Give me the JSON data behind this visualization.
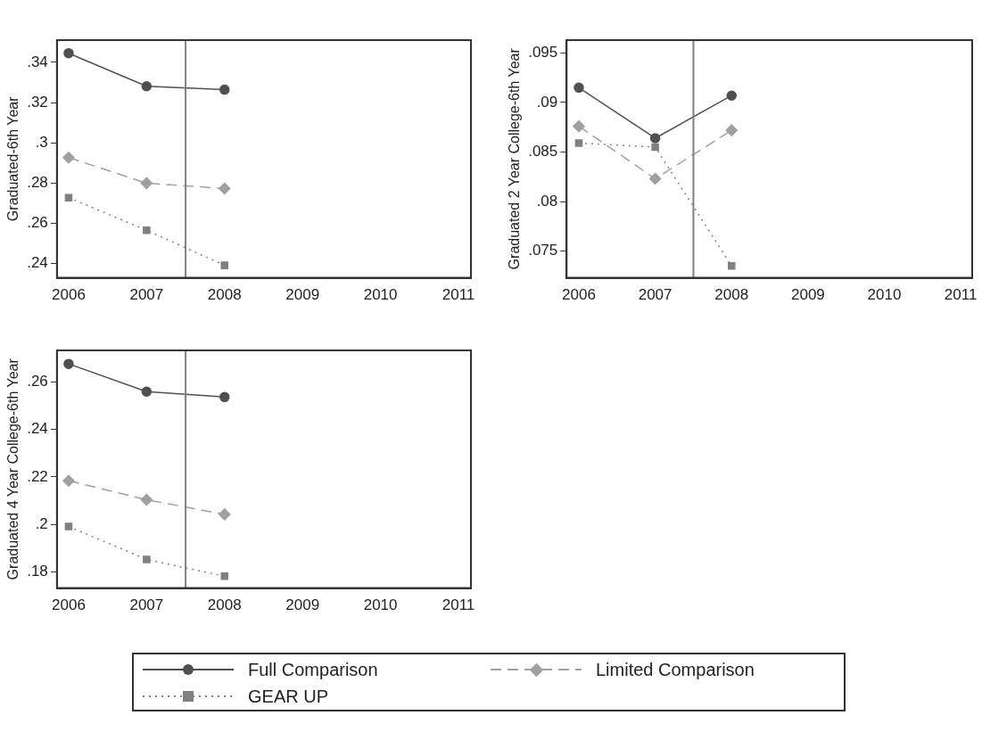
{
  "chart_data": [
    {
      "type": "line",
      "ylabel": "Graduated-6th Year",
      "x": [
        2006,
        2007,
        2008
      ],
      "xlim": [
        2005.85,
        2011.16
      ],
      "xticks": [
        2006,
        2007,
        2008,
        2009,
        2010,
        2011
      ],
      "ylim": [
        0.233,
        0.351
      ],
      "yticks": [
        {
          "value": 0.24,
          "label": ".24"
        },
        {
          "value": 0.26,
          "label": ".26"
        },
        {
          "value": 0.28,
          "label": ".28"
        },
        {
          "value": 0.3,
          "label": ".3"
        },
        {
          "value": 0.32,
          "label": ".32"
        },
        {
          "value": 0.34,
          "label": ".34"
        }
      ],
      "grid": false,
      "legend": "bottom",
      "ref_lines": [
        {
          "axis": "x",
          "value": 2007.5,
          "color": "#808080"
        }
      ],
      "series": [
        {
          "name": "Full Comparison",
          "color": "#505050",
          "marker": "circle",
          "line_style": "solid",
          "values": [
            0.3445,
            0.3281,
            0.3264
          ]
        },
        {
          "name": "Limited Comparison",
          "color": "#a0a0a0",
          "marker": "diamond",
          "line_style": "dashed",
          "values": [
            0.2927,
            0.28,
            0.2773
          ]
        },
        {
          "name": "GEAR UP",
          "color": "#808080",
          "marker": "square",
          "line_style": "dotted",
          "values": [
            0.2728,
            0.2566,
            0.2392
          ]
        }
      ]
    },
    {
      "type": "line",
      "ylabel": "Graduated 2 Year College-6th Year",
      "x": [
        2006,
        2007,
        2008
      ],
      "xlim": [
        2005.84,
        2011.15
      ],
      "xticks": [
        2006,
        2007,
        2008,
        2009,
        2010,
        2011
      ],
      "ylim": [
        0.0723,
        0.0963
      ],
      "yticks": [
        {
          "value": 0.075,
          "label": ".075"
        },
        {
          "value": 0.08,
          "label": ".08"
        },
        {
          "value": 0.085,
          "label": ".085"
        },
        {
          "value": 0.09,
          "label": ".09"
        },
        {
          "value": 0.095,
          "label": ".095"
        }
      ],
      "grid": false,
      "ref_lines": [
        {
          "axis": "x",
          "value": 2007.5,
          "color": "#808080"
        }
      ],
      "series": [
        {
          "color": "#505050",
          "marker": "circle",
          "line_style": "solid",
          "values": [
            0.0915,
            0.0864,
            0.0907
          ]
        },
        {
          "color": "#a0a0a0",
          "marker": "diamond",
          "line_style": "dashed",
          "values": [
            0.0876,
            0.0823,
            0.0872
          ]
        },
        {
          "color": "#808080",
          "marker": "square",
          "line_style": "dotted",
          "values": [
            0.0859,
            0.0855,
            0.0735
          ]
        }
      ]
    },
    {
      "type": "line",
      "ylabel": "Graduated 4 Year College-6th Year",
      "x": [
        2006,
        2007,
        2008
      ],
      "xlim": [
        2005.85,
        2011.16
      ],
      "xticks": [
        2006,
        2007,
        2008,
        2009,
        2010,
        2011
      ],
      "ylim": [
        0.1731,
        0.2734
      ],
      "yticks": [
        {
          "value": 0.18,
          "label": ".18"
        },
        {
          "value": 0.2,
          "label": ".2"
        },
        {
          "value": 0.22,
          "label": ".22"
        },
        {
          "value": 0.24,
          "label": ".24"
        },
        {
          "value": 0.26,
          "label": ".26"
        }
      ],
      "grid": false,
      "ref_lines": [
        {
          "axis": "x",
          "value": 2007.5,
          "color": "#808080"
        }
      ],
      "series": [
        {
          "color": "#505050",
          "marker": "circle",
          "line_style": "solid",
          "values": [
            0.2677,
            0.256,
            0.2537
          ]
        },
        {
          "color": "#a0a0a0",
          "marker": "diamond",
          "line_style": "dashed",
          "values": [
            0.2184,
            0.2104,
            0.2042
          ]
        },
        {
          "color": "#808080",
          "marker": "square",
          "line_style": "dotted",
          "values": [
            0.1991,
            0.1852,
            0.1781
          ]
        }
      ]
    }
  ]
}
